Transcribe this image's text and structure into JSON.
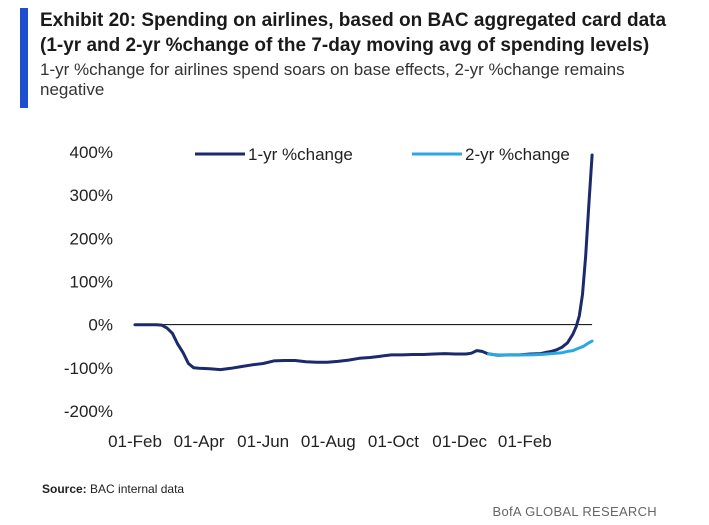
{
  "header": {
    "title_line1": "Exhibit 20: Spending on airlines, based on BAC aggregated card data",
    "title_line2": "(1-yr and 2-yr %change of the 7-day moving avg of spending levels)",
    "subtitle": "1-yr %change for airlines spend soars on base effects, 2-yr %change remains negative",
    "accent_color": "#1f4fd1"
  },
  "footer": {
    "source_label": "Source:",
    "source_text": "BAC internal data",
    "brand": "BofA GLOBAL RESEARCH"
  },
  "chart_data": {
    "type": "line",
    "title": "",
    "xlabel": "",
    "ylabel": "",
    "ylim": [
      -200,
      400
    ],
    "yticks": [
      400,
      300,
      200,
      100,
      0,
      -100,
      -200
    ],
    "ytick_labels": [
      "400%",
      "300%",
      "200%",
      "100%",
      "0%",
      "-100%",
      "-200%"
    ],
    "xlim": [
      0,
      456
    ],
    "xticks": [
      0,
      60,
      120,
      181,
      242,
      304,
      365
    ],
    "xtick_labels": [
      "01-Feb",
      "01-Apr",
      "01-Jun",
      "01-Aug",
      "01-Oct",
      "01-Dec",
      "01-Feb"
    ],
    "x_unit": "days since 01-Feb (year 1)",
    "zero_line": true,
    "grid": false,
    "legend_position": "top",
    "series": [
      {
        "name": "1-yr %change",
        "color": "#1b2a6b",
        "x": [
          0,
          10,
          20,
          25,
          30,
          35,
          40,
          45,
          50,
          55,
          60,
          70,
          80,
          90,
          100,
          110,
          120,
          130,
          140,
          150,
          160,
          170,
          180,
          190,
          200,
          210,
          220,
          230,
          240,
          250,
          260,
          270,
          280,
          290,
          300,
          310,
          315,
          320,
          325,
          330,
          335,
          340,
          350,
          360,
          370,
          380,
          385,
          390,
          395,
          400,
          405,
          410,
          413,
          416,
          419,
          422,
          425,
          428
        ],
        "y": [
          0,
          0,
          0,
          -1,
          -8,
          -20,
          -45,
          -65,
          -90,
          -100,
          -101,
          -102,
          -104,
          -101,
          -97,
          -93,
          -90,
          -84,
          -83,
          -83,
          -86,
          -87,
          -87,
          -85,
          -82,
          -78,
          -76,
          -73,
          -70,
          -70,
          -69,
          -69,
          -68,
          -67,
          -68,
          -68,
          -66,
          -60,
          -62,
          -67,
          -69,
          -71,
          -70,
          -70,
          -68,
          -67,
          -64,
          -62,
          -58,
          -52,
          -42,
          -22,
          -5,
          20,
          70,
          160,
          280,
          393
        ]
      },
      {
        "name": "2-yr %change",
        "color": "#2aa8e0",
        "x": [
          331,
          340,
          350,
          360,
          370,
          380,
          390,
          400,
          405,
          410,
          415,
          420,
          425,
          428
        ],
        "y": [
          -68,
          -70,
          -70,
          -70,
          -70,
          -69,
          -67,
          -65,
          -62,
          -60,
          -55,
          -50,
          -42,
          -38
        ]
      }
    ]
  }
}
